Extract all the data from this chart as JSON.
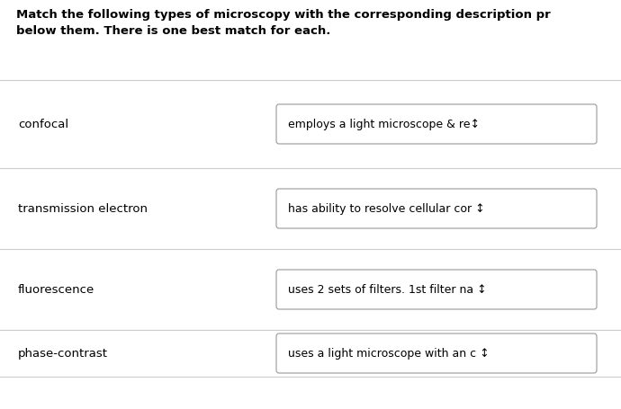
{
  "title_line1": "Match the following types of microscopy with the corresponding description pr",
  "title_line2": "below them. There is one best match for each.",
  "background_color": "#ffffff",
  "divider_color": "#cccccc",
  "text_color": "#000000",
  "box_border_color": "#999999",
  "box_bg_color": "#ffffff",
  "rows": [
    {
      "label": "confocal",
      "dropdown_text": "employs a light microscope & re↕"
    },
    {
      "label": "transmission electron",
      "dropdown_text": "has ability to resolve cellular cor ↕"
    },
    {
      "label": "fluorescence",
      "dropdown_text": "uses 2 sets of filters. 1st filter na ↕"
    },
    {
      "label": "phase-contrast",
      "dropdown_text": "uses a light microscope with an c ↕"
    }
  ],
  "title_fontsize": 9.5,
  "label_fontsize": 9.5,
  "dropdown_fontsize": 9.0
}
